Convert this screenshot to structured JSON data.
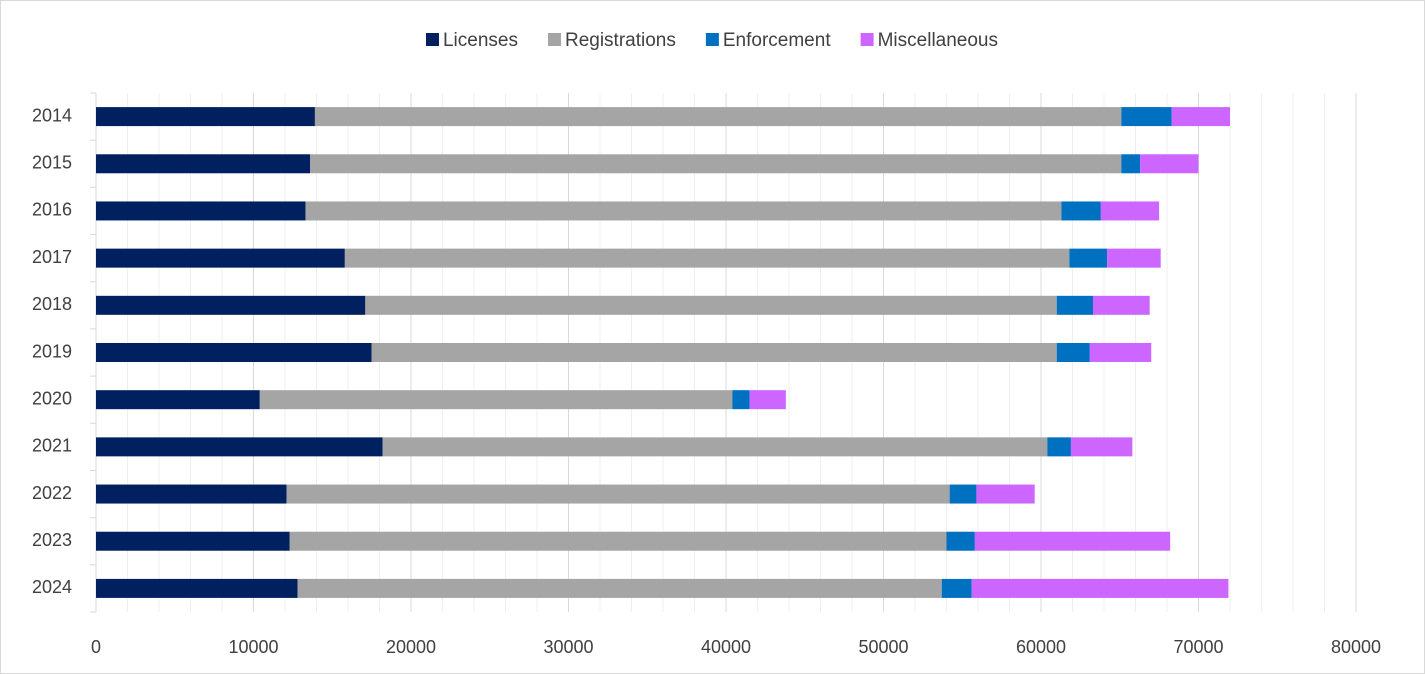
{
  "chart_data": {
    "type": "stacked-barh",
    "categories": [
      "2014",
      "2015",
      "2016",
      "2017",
      "2018",
      "2019",
      "2020",
      "2021",
      "2022",
      "2023",
      "2024"
    ],
    "series": [
      {
        "name": "Licenses",
        "color": "#002060",
        "values": [
          13900,
          13600,
          13300,
          15800,
          17100,
          17500,
          10400,
          18200,
          12100,
          12300,
          12800
        ]
      },
      {
        "name": "Registrations",
        "color": "#a5a5a5",
        "values": [
          51200,
          51500,
          48000,
          46000,
          43900,
          43500,
          30000,
          42200,
          42100,
          41700,
          40900
        ]
      },
      {
        "name": "Enforcement",
        "color": "#0070c0",
        "values": [
          3200,
          1200,
          2500,
          2400,
          2300,
          2100,
          1100,
          1500,
          1700,
          1800,
          1900
        ]
      },
      {
        "name": "Miscellaneous",
        "color": "#cc66ff",
        "values": [
          3700,
          3700,
          3700,
          3400,
          3600,
          3900,
          2300,
          3900,
          3700,
          12400,
          16300
        ]
      }
    ],
    "xlim": [
      0,
      80000
    ],
    "xticks": [
      0,
      10000,
      20000,
      30000,
      40000,
      50000,
      60000,
      70000,
      80000
    ],
    "minor_xticks": [
      2000,
      4000,
      6000,
      8000,
      12000,
      14000,
      16000,
      18000,
      22000,
      24000,
      26000,
      28000,
      32000,
      34000,
      36000,
      38000,
      42000,
      44000,
      46000,
      48000,
      52000,
      54000,
      56000,
      58000,
      62000,
      64000,
      66000,
      68000,
      72000,
      74000,
      76000,
      78000
    ],
    "grid": true,
    "legend": "top"
  }
}
